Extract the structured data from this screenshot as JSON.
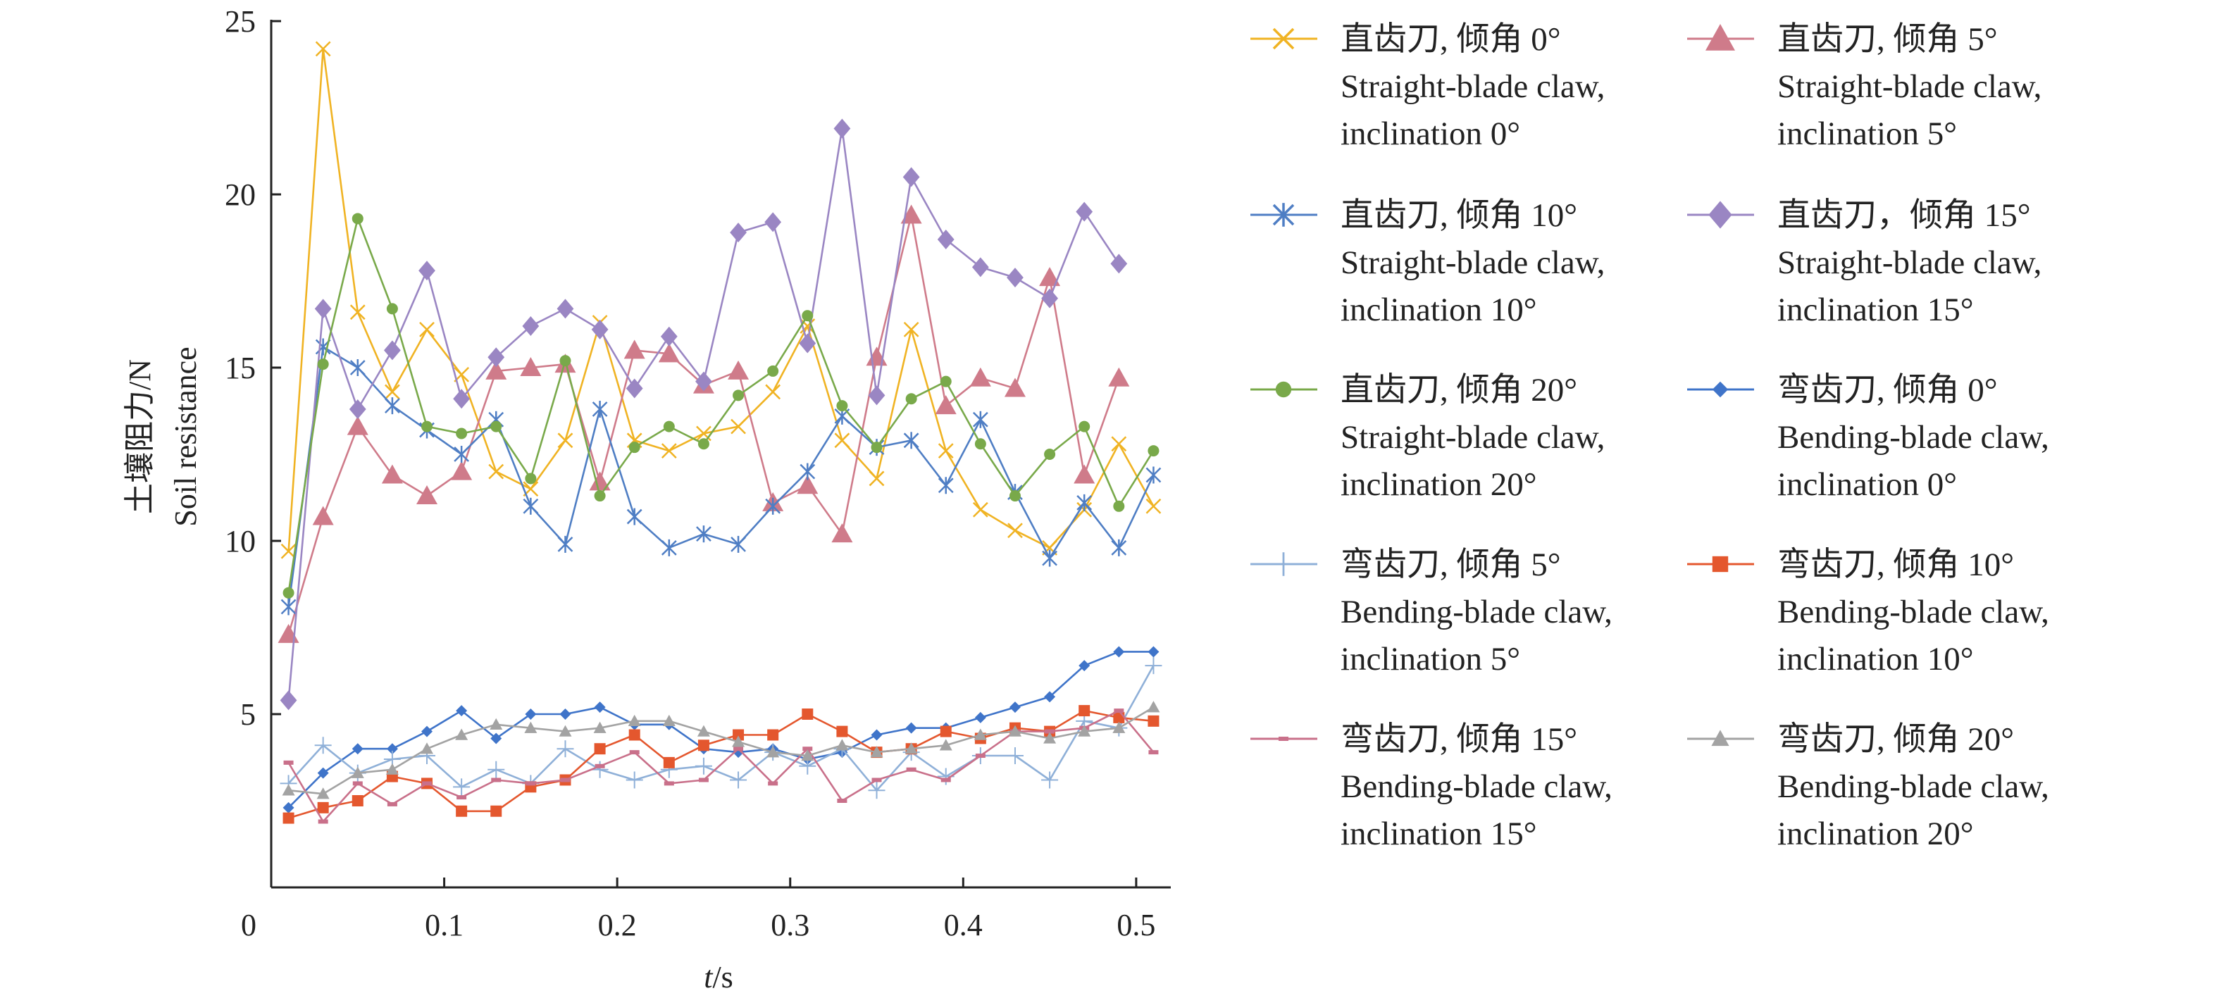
{
  "chart_data": {
    "type": "line",
    "title": "",
    "xlabel_italic": "t",
    "xlabel_unit": "/s",
    "ylabel_line1": "土壤阻力/N",
    "ylabel_line2": "Soil resistance",
    "xlim": [
      0,
      0.52
    ],
    "ylim": [
      0,
      25
    ],
    "x_ticks": [
      0,
      0.1,
      0.2,
      0.3,
      0.4,
      0.5
    ],
    "x_tick_labels": [
      "0",
      "0.1",
      "0.2",
      "0.3",
      "0.4",
      "0.5"
    ],
    "y_ticks": [
      5,
      10,
      15,
      20,
      25
    ],
    "y_tick_labels": [
      "5",
      "10",
      "15",
      "20",
      "25"
    ],
    "grid": false,
    "legend_position": "right",
    "x": [
      0.01,
      0.03,
      0.05,
      0.07,
      0.09,
      0.11,
      0.13,
      0.15,
      0.17,
      0.19,
      0.21,
      0.23,
      0.25,
      0.27,
      0.29,
      0.31,
      0.33,
      0.35,
      0.37,
      0.39,
      0.41,
      0.43,
      0.45,
      0.47,
      0.49,
      0.51
    ],
    "series": [
      {
        "name_cn": "直齿刀, 倾角 0°",
        "name_en1": "Straight-blade claw,",
        "name_en2": "inclination 0°",
        "color": "#f0b323",
        "marker": "x",
        "values": [
          9.7,
          24.2,
          16.6,
          14.3,
          16.1,
          14.8,
          12.0,
          11.5,
          12.9,
          16.3,
          12.9,
          12.6,
          13.1,
          13.3,
          14.3,
          16.2,
          12.9,
          11.8,
          16.1,
          12.6,
          10.9,
          10.3,
          9.8,
          10.9,
          12.8,
          11.0
        ]
      },
      {
        "name_cn": "直齿刀, 倾角 5°",
        "name_en1": "Straight-blade claw,",
        "name_en2": "inclination 5°",
        "color": "#cf7b8a",
        "marker": "triangle",
        "values": [
          7.3,
          10.7,
          13.3,
          11.9,
          11.3,
          12.0,
          14.9,
          15.0,
          15.1,
          11.7,
          15.5,
          15.4,
          14.5,
          14.9,
          11.1,
          11.6,
          10.2,
          15.3,
          19.4,
          13.9,
          14.7,
          14.4,
          17.6,
          11.9,
          14.7,
          null
        ]
      },
      {
        "name_cn": "直齿刀, 倾角 10°",
        "name_en1": "Straight-blade claw,",
        "name_en2": " inclination 10°",
        "color": "#4f7ec4",
        "marker": "star",
        "values": [
          8.1,
          15.6,
          15.0,
          13.9,
          13.2,
          12.5,
          13.5,
          11.0,
          9.9,
          13.8,
          10.7,
          9.8,
          10.2,
          9.9,
          11.0,
          12.0,
          13.6,
          12.7,
          12.9,
          11.6,
          13.5,
          11.4,
          9.5,
          11.1,
          9.8,
          11.9
        ]
      },
      {
        "name_cn": "直齿刀，倾角 15°",
        "name_en1": "Straight-blade claw,",
        "name_en2": "inclination 15°",
        "color": "#9a86c3",
        "marker": "diamond",
        "values": [
          5.4,
          16.7,
          13.8,
          15.5,
          17.8,
          14.1,
          15.3,
          16.2,
          16.7,
          16.1,
          14.4,
          15.9,
          14.6,
          18.9,
          19.2,
          15.7,
          21.9,
          14.2,
          20.5,
          18.7,
          17.9,
          17.6,
          17.0,
          19.5,
          18.0,
          null
        ]
      },
      {
        "name_cn": "直齿刀, 倾角 20°",
        "name_en1": "Straight-blade claw,",
        "name_en2": "inclination 20°",
        "color": "#79a94a",
        "marker": "circle",
        "values": [
          8.5,
          15.1,
          19.3,
          16.7,
          13.3,
          13.1,
          13.3,
          11.8,
          15.2,
          11.3,
          12.7,
          13.3,
          12.8,
          14.2,
          14.9,
          16.5,
          13.9,
          12.7,
          14.1,
          14.6,
          12.8,
          11.3,
          12.5,
          13.3,
          11.0,
          12.6
        ]
      },
      {
        "name_cn": "弯齿刀, 倾角 0°",
        "name_en1": "Bending-blade claw,",
        "name_en2": "inclination 0°",
        "color": "#3f74c9",
        "marker": "smalldiamond",
        "values": [
          2.3,
          3.3,
          4.0,
          4.0,
          4.5,
          5.1,
          4.3,
          5.0,
          5.0,
          5.2,
          4.7,
          4.7,
          4.0,
          3.9,
          4.0,
          3.7,
          3.9,
          4.4,
          4.6,
          4.6,
          4.9,
          5.2,
          5.5,
          6.4,
          6.8,
          6.8
        ]
      },
      {
        "name_cn": "弯齿刀, 倾角 5°",
        "name_en1": "Bending-blade claw,",
        "name_en2": "inclination 5°",
        "color": "#8fb0d8",
        "marker": "plus",
        "values": [
          3.0,
          4.1,
          3.3,
          3.7,
          3.8,
          2.9,
          3.4,
          3.0,
          4.0,
          3.4,
          3.1,
          3.4,
          3.5,
          3.1,
          3.9,
          3.5,
          4.0,
          2.8,
          3.9,
          3.2,
          3.8,
          3.8,
          3.1,
          4.8,
          4.6,
          6.4
        ]
      },
      {
        "name_cn": "弯齿刀, 倾角 10°",
        "name_en1": "Bending-blade claw,",
        "name_en2": "inclination 10°",
        "color": "#e4572e",
        "marker": "square",
        "values": [
          2.0,
          2.3,
          2.5,
          3.2,
          3.0,
          2.2,
          2.2,
          2.9,
          3.1,
          4.0,
          4.4,
          3.6,
          4.1,
          4.4,
          4.4,
          5.0,
          4.5,
          3.9,
          4.0,
          4.5,
          4.3,
          4.6,
          4.5,
          5.1,
          4.9,
          4.8
        ]
      },
      {
        "name_cn": "弯齿刀, 倾角 15°",
        "name_en1": "Bending-blade claw,",
        "name_en2": "inclination 15°",
        "color": "#c9708a",
        "marker": "dash",
        "values": [
          3.6,
          1.9,
          3.0,
          2.4,
          3.0,
          2.6,
          3.1,
          3.0,
          3.1,
          3.5,
          3.9,
          3.0,
          3.1,
          4.0,
          3.0,
          4.0,
          2.5,
          3.1,
          3.4,
          3.1,
          3.8,
          4.5,
          4.5,
          4.6,
          5.1,
          3.9
        ]
      },
      {
        "name_cn": "弯齿刀, 倾角 20°",
        "name_en1": "Bending-blade claw,",
        "name_en2": "inclination 20°",
        "color": "#a3a3a3",
        "marker": "smalltriangle",
        "values": [
          2.8,
          2.7,
          3.3,
          3.4,
          4.0,
          4.4,
          4.7,
          4.6,
          4.5,
          4.6,
          4.8,
          4.8,
          4.5,
          4.2,
          3.9,
          3.8,
          4.1,
          3.9,
          4.0,
          4.1,
          4.4,
          4.5,
          4.3,
          4.5,
          4.6,
          5.2
        ]
      }
    ]
  }
}
